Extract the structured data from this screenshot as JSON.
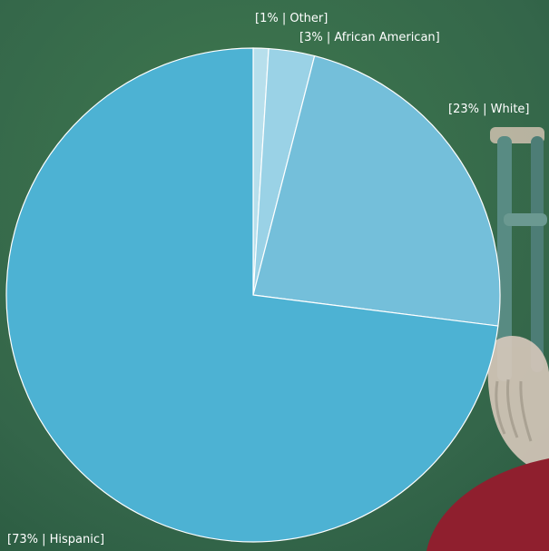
{
  "chart_data": {
    "type": "pie",
    "title": "",
    "slices": [
      {
        "label": "[1% | Other]",
        "value": 1,
        "color": "#b7dfec"
      },
      {
        "label": "[3% | African American]",
        "value": 3,
        "color": "#9ad2e6"
      },
      {
        "label": "[23% | White]",
        "value": 23,
        "color": "#74bfda"
      },
      {
        "label": "[73% | Hispanic]",
        "value": 73,
        "color": "#4db2d3"
      }
    ],
    "start_angle": "12 o'clock",
    "direction": "clockwise",
    "slice_border_color": "#ffffff",
    "label_color": "#ffffff",
    "background_color": "#3c6e49"
  }
}
